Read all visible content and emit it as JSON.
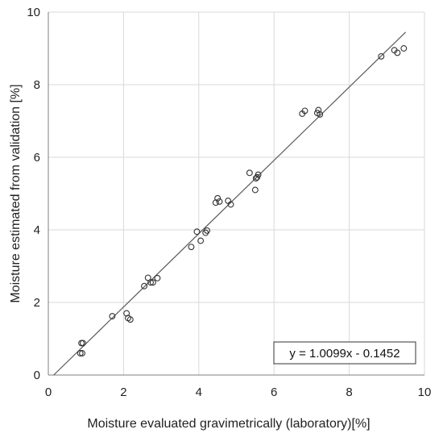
{
  "chart_data": {
    "type": "scatter",
    "xlabel": "Moisture evaluated gravimetrically (laboratory)[%]",
    "ylabel": "Moisture estimated from validation [%]",
    "xlim": [
      0,
      10
    ],
    "ylim": [
      0,
      10
    ],
    "x_ticks": [
      "0",
      "2",
      "4",
      "6",
      "8",
      "10"
    ],
    "y_ticks": [
      "0",
      "2",
      "4",
      "6",
      "8",
      "10"
    ],
    "grid": true,
    "points": [
      {
        "x": 0.85,
        "y": 0.6
      },
      {
        "x": 0.9,
        "y": 0.6
      },
      {
        "x": 0.88,
        "y": 0.88
      },
      {
        "x": 0.92,
        "y": 0.88
      },
      {
        "x": 1.7,
        "y": 1.62
      },
      {
        "x": 2.08,
        "y": 1.7
      },
      {
        "x": 2.12,
        "y": 1.57
      },
      {
        "x": 2.18,
        "y": 1.53
      },
      {
        "x": 2.55,
        "y": 2.45
      },
      {
        "x": 2.65,
        "y": 2.68
      },
      {
        "x": 2.72,
        "y": 2.55
      },
      {
        "x": 2.78,
        "y": 2.55
      },
      {
        "x": 2.9,
        "y": 2.67
      },
      {
        "x": 3.8,
        "y": 3.53
      },
      {
        "x": 3.95,
        "y": 3.95
      },
      {
        "x": 4.05,
        "y": 3.7
      },
      {
        "x": 4.18,
        "y": 3.92
      },
      {
        "x": 4.22,
        "y": 3.98
      },
      {
        "x": 4.45,
        "y": 4.75
      },
      {
        "x": 4.5,
        "y": 4.87
      },
      {
        "x": 4.55,
        "y": 4.78
      },
      {
        "x": 4.78,
        "y": 4.8
      },
      {
        "x": 4.85,
        "y": 4.7
      },
      {
        "x": 5.35,
        "y": 5.57
      },
      {
        "x": 5.5,
        "y": 5.1
      },
      {
        "x": 5.52,
        "y": 5.42
      },
      {
        "x": 5.55,
        "y": 5.45
      },
      {
        "x": 5.58,
        "y": 5.52
      },
      {
        "x": 6.75,
        "y": 7.2
      },
      {
        "x": 6.82,
        "y": 7.28
      },
      {
        "x": 7.15,
        "y": 7.22
      },
      {
        "x": 7.18,
        "y": 7.3
      },
      {
        "x": 7.22,
        "y": 7.18
      },
      {
        "x": 8.85,
        "y": 8.78
      },
      {
        "x": 9.2,
        "y": 8.95
      },
      {
        "x": 9.28,
        "y": 8.88
      },
      {
        "x": 9.45,
        "y": 9.0
      }
    ],
    "trendline": {
      "slope": 1.0099,
      "intercept": -0.1452
    },
    "annotation": "y = 1.0099x - 0.1452"
  },
  "colors": {
    "grid": "#d9d9d9",
    "axis": "#7f7f7f",
    "marker": "#333333",
    "trendline": "#595959"
  }
}
